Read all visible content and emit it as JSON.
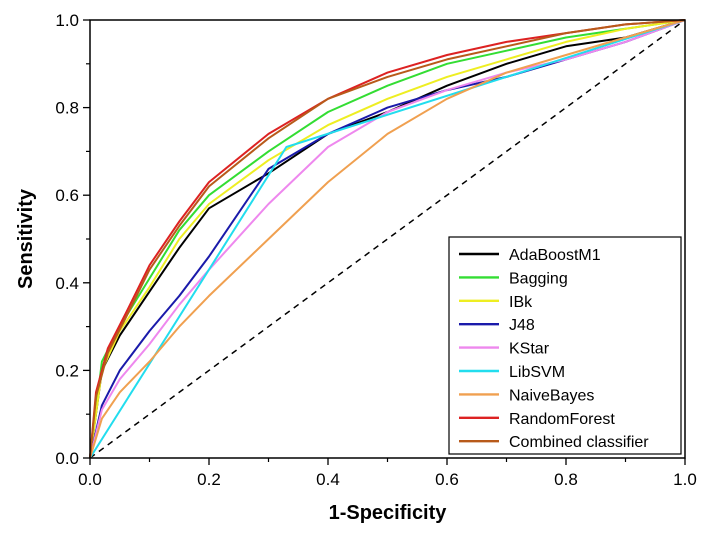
{
  "chart_data": {
    "type": "line",
    "title": "",
    "xlabel": "1-Specificity",
    "ylabel": "Sensitivity",
    "xlim": [
      0,
      1
    ],
    "ylim": [
      0,
      1
    ],
    "x_ticks": [
      "0.0",
      "0.2",
      "0.4",
      "0.6",
      "0.8",
      "1.0"
    ],
    "y_ticks": [
      "0.0",
      "0.2",
      "0.4",
      "0.6",
      "0.8",
      "1.0"
    ],
    "legend_position": "bottom-right",
    "reference_line": {
      "name": "chance",
      "style": "dashed",
      "color": "#000000",
      "points": [
        [
          0,
          0
        ],
        [
          1,
          1
        ]
      ]
    },
    "series": [
      {
        "name": "AdaBoostM1",
        "color": "#000000",
        "points": [
          [
            0,
            0
          ],
          [
            0.02,
            0.2
          ],
          [
            0.05,
            0.28
          ],
          [
            0.1,
            0.38
          ],
          [
            0.15,
            0.48
          ],
          [
            0.2,
            0.57
          ],
          [
            0.3,
            0.65
          ],
          [
            0.4,
            0.74
          ],
          [
            0.5,
            0.79
          ],
          [
            0.6,
            0.85
          ],
          [
            0.7,
            0.9
          ],
          [
            0.8,
            0.94
          ],
          [
            0.9,
            0.96
          ],
          [
            1,
            1
          ]
        ]
      },
      {
        "name": "Bagging",
        "color": "#33dd33",
        "points": [
          [
            0,
            0
          ],
          [
            0.02,
            0.22
          ],
          [
            0.05,
            0.3
          ],
          [
            0.1,
            0.41
          ],
          [
            0.15,
            0.52
          ],
          [
            0.2,
            0.6
          ],
          [
            0.3,
            0.7
          ],
          [
            0.4,
            0.79
          ],
          [
            0.5,
            0.85
          ],
          [
            0.6,
            0.9
          ],
          [
            0.7,
            0.93
          ],
          [
            0.8,
            0.96
          ],
          [
            0.9,
            0.98
          ],
          [
            1,
            1
          ]
        ]
      },
      {
        "name": "IBk",
        "color": "#eeee22",
        "points": [
          [
            0,
            0
          ],
          [
            0.02,
            0.2
          ],
          [
            0.05,
            0.29
          ],
          [
            0.1,
            0.39
          ],
          [
            0.15,
            0.5
          ],
          [
            0.2,
            0.58
          ],
          [
            0.3,
            0.68
          ],
          [
            0.4,
            0.76
          ],
          [
            0.5,
            0.82
          ],
          [
            0.6,
            0.87
          ],
          [
            0.7,
            0.91
          ],
          [
            0.8,
            0.95
          ],
          [
            0.9,
            0.98
          ],
          [
            1,
            1
          ]
        ]
      },
      {
        "name": "J48",
        "color": "#1a1aaa",
        "points": [
          [
            0,
            0
          ],
          [
            0.02,
            0.12
          ],
          [
            0.05,
            0.2
          ],
          [
            0.1,
            0.29
          ],
          [
            0.15,
            0.37
          ],
          [
            0.2,
            0.46
          ],
          [
            0.3,
            0.66
          ],
          [
            0.4,
            0.74
          ],
          [
            0.5,
            0.8
          ],
          [
            0.6,
            0.84
          ],
          [
            0.7,
            0.87
          ],
          [
            0.8,
            0.91
          ],
          [
            0.9,
            0.95
          ],
          [
            1,
            1
          ]
        ]
      },
      {
        "name": "KStar",
        "color": "#ee88ee",
        "points": [
          [
            0,
            0
          ],
          [
            0.02,
            0.11
          ],
          [
            0.05,
            0.18
          ],
          [
            0.1,
            0.26
          ],
          [
            0.15,
            0.35
          ],
          [
            0.2,
            0.43
          ],
          [
            0.3,
            0.58
          ],
          [
            0.4,
            0.71
          ],
          [
            0.5,
            0.79
          ],
          [
            0.6,
            0.84
          ],
          [
            0.7,
            0.88
          ],
          [
            0.8,
            0.91
          ],
          [
            0.9,
            0.95
          ],
          [
            1,
            1
          ]
        ]
      },
      {
        "name": "LibSVM",
        "color": "#22ddee",
        "points": [
          [
            0,
            0
          ],
          [
            0.33,
            0.71
          ],
          [
            1,
            1
          ]
        ]
      },
      {
        "name": "NaiveBayes",
        "color": "#f0a050",
        "points": [
          [
            0,
            0
          ],
          [
            0.02,
            0.09
          ],
          [
            0.05,
            0.15
          ],
          [
            0.1,
            0.22
          ],
          [
            0.15,
            0.3
          ],
          [
            0.2,
            0.37
          ],
          [
            0.3,
            0.5
          ],
          [
            0.4,
            0.63
          ],
          [
            0.5,
            0.74
          ],
          [
            0.6,
            0.82
          ],
          [
            0.7,
            0.88
          ],
          [
            0.8,
            0.92
          ],
          [
            0.9,
            0.96
          ],
          [
            1,
            1
          ]
        ]
      },
      {
        "name": "RandomForest",
        "color": "#dd2222",
        "points": [
          [
            0,
            0
          ],
          [
            0.01,
            0.15
          ],
          [
            0.03,
            0.25
          ],
          [
            0.06,
            0.33
          ],
          [
            0.1,
            0.44
          ],
          [
            0.15,
            0.54
          ],
          [
            0.2,
            0.63
          ],
          [
            0.3,
            0.74
          ],
          [
            0.4,
            0.82
          ],
          [
            0.5,
            0.88
          ],
          [
            0.6,
            0.92
          ],
          [
            0.7,
            0.95
          ],
          [
            0.8,
            0.97
          ],
          [
            0.9,
            0.99
          ],
          [
            1,
            1
          ]
        ]
      },
      {
        "name": "Combined classifier",
        "color": "#b85a1a",
        "points": [
          [
            0,
            0
          ],
          [
            0.01,
            0.14
          ],
          [
            0.03,
            0.24
          ],
          [
            0.06,
            0.32
          ],
          [
            0.1,
            0.43
          ],
          [
            0.15,
            0.53
          ],
          [
            0.2,
            0.62
          ],
          [
            0.3,
            0.73
          ],
          [
            0.4,
            0.82
          ],
          [
            0.5,
            0.87
          ],
          [
            0.6,
            0.91
          ],
          [
            0.7,
            0.94
          ],
          [
            0.8,
            0.97
          ],
          [
            0.9,
            0.99
          ],
          [
            1,
            1
          ]
        ]
      }
    ]
  }
}
